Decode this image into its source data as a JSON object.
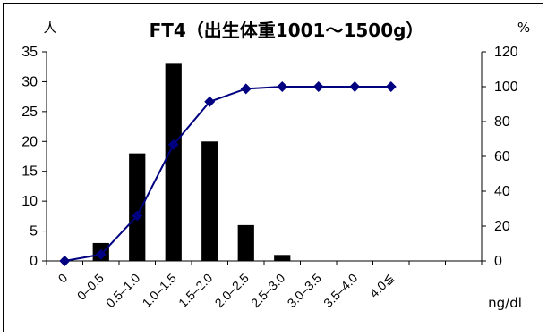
{
  "chart_data": {
    "type": "bar",
    "title": "FT4（出生体重1001～1500g）",
    "y_left_unit": "人",
    "y_right_unit": "%",
    "xlabel": "ng/dl",
    "categories": [
      "0",
      "0–0.5",
      "0.5–1.0",
      "1.0–1.5",
      "1.5–2.0",
      "2.0–2.5",
      "2.5–3.0",
      "3.0–3.5",
      "3.5–4.0",
      "4.0≦"
    ],
    "series": [
      {
        "axis": "left",
        "kind": "bar",
        "color": "#000000",
        "values": [
          0,
          3,
          18,
          33,
          20,
          6,
          1,
          0,
          0,
          0
        ]
      },
      {
        "axis": "right",
        "kind": "line",
        "color": "#000080",
        "marker": "diamond",
        "values": [
          0,
          3.7,
          25.9,
          66.7,
          91.4,
          98.8,
          100,
          100,
          100,
          100
        ]
      }
    ],
    "y_left_ticks": [
      "0",
      "5",
      "10",
      "15",
      "20",
      "25",
      "30",
      "35"
    ],
    "y_left_lim": [
      0,
      35
    ],
    "y_right_ticks": [
      "0",
      "20",
      "40",
      "60",
      "80",
      "100",
      "120"
    ],
    "y_right_lim": [
      0,
      120
    ],
    "grid": false,
    "legend": "none"
  }
}
